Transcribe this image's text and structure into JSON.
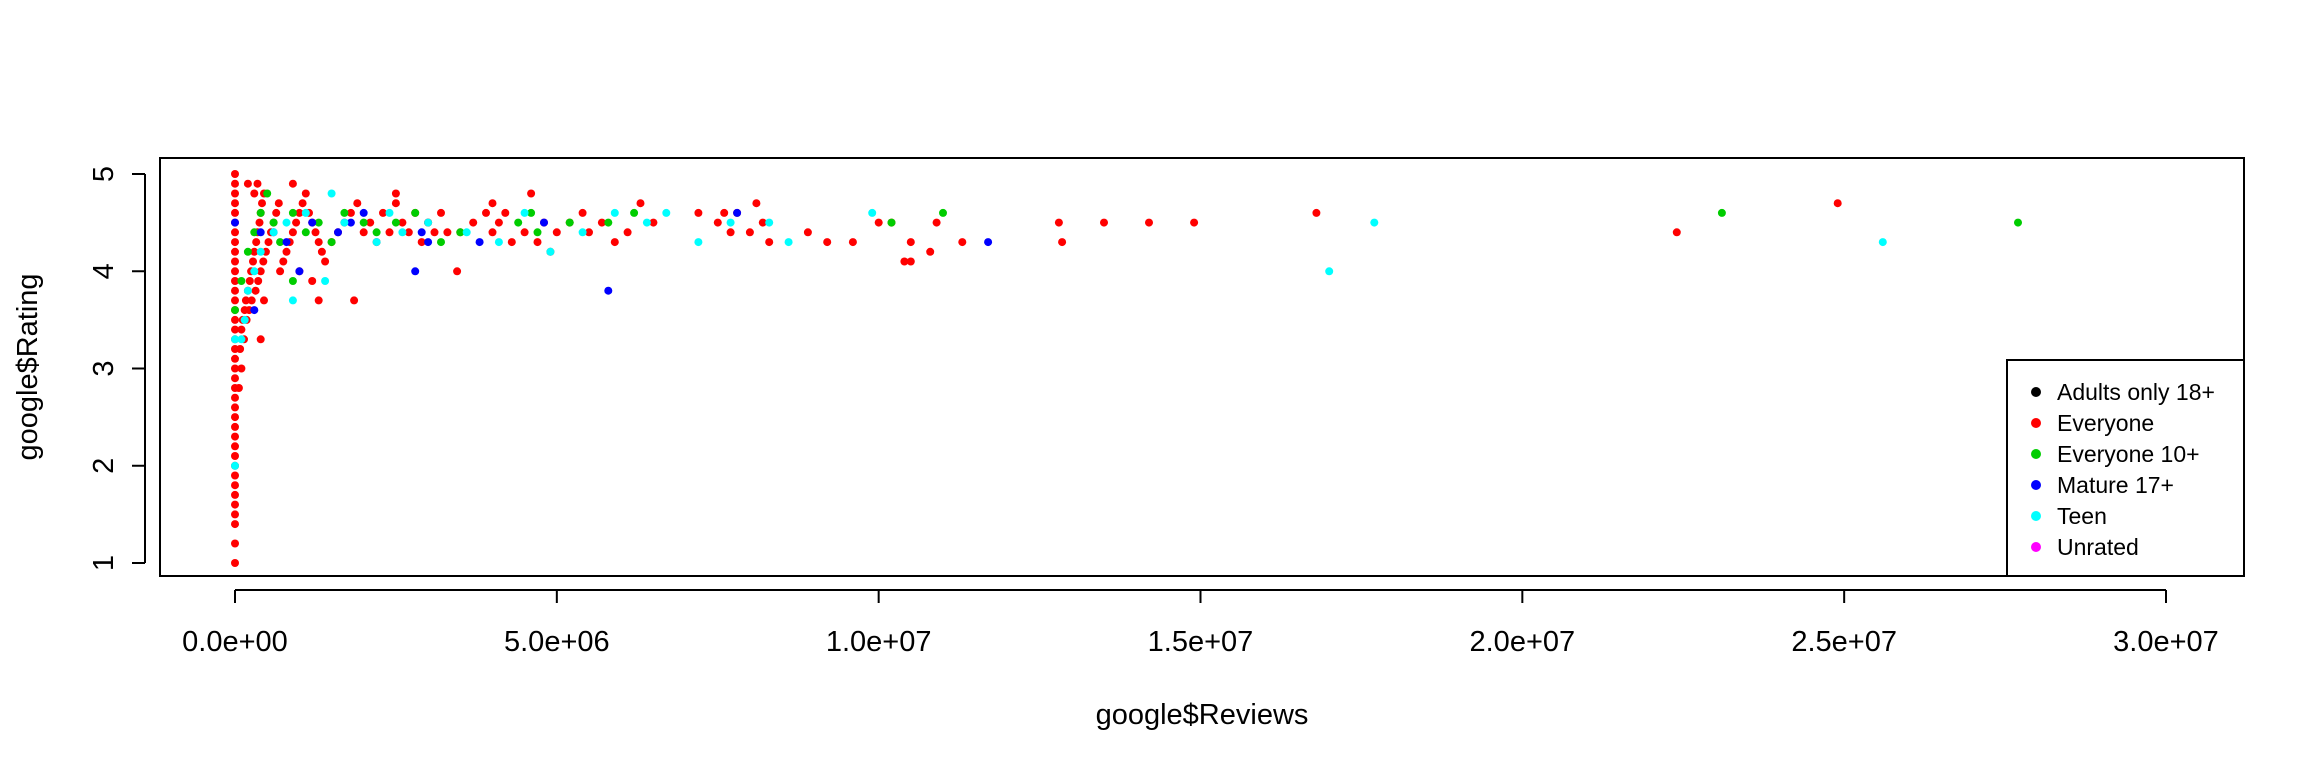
{
  "chart_data": {
    "type": "scatter",
    "xlabel": "google$Reviews",
    "ylabel": "google$Rating",
    "xlim": [
      0,
      30000000
    ],
    "ylim": [
      1,
      5
    ],
    "x_ticks": [
      0,
      5000000,
      10000000,
      15000000,
      20000000,
      25000000,
      30000000
    ],
    "x_tick_labels": [
      "0.0e+00",
      "5.0e+06",
      "1.0e+07",
      "1.5e+07",
      "2.0e+07",
      "2.5e+07",
      "3.0e+07"
    ],
    "y_ticks": [
      1,
      2,
      3,
      4,
      5
    ],
    "y_tick_labels": [
      "1",
      "2",
      "3",
      "4",
      "5"
    ],
    "grid": false,
    "legend_position": "bottom-right",
    "series": [
      {
        "name": "Adults only 18+",
        "color": "#000000",
        "points": []
      },
      {
        "name": "Everyone",
        "color": "#ff0000",
        "points": [
          [
            0,
            1.0
          ],
          [
            0,
            1.2
          ],
          [
            0,
            1.4
          ],
          [
            0,
            1.5
          ],
          [
            0,
            1.6
          ],
          [
            0,
            1.7
          ],
          [
            0,
            1.8
          ],
          [
            0,
            1.9
          ],
          [
            0,
            2.0
          ],
          [
            0,
            2.1
          ],
          [
            0,
            2.2
          ],
          [
            0,
            2.3
          ],
          [
            0,
            2.4
          ],
          [
            0,
            2.5
          ],
          [
            0,
            2.6
          ],
          [
            0,
            2.7
          ],
          [
            0,
            2.8
          ],
          [
            0,
            2.9
          ],
          [
            0,
            3.0
          ],
          [
            0,
            3.1
          ],
          [
            0,
            3.2
          ],
          [
            0,
            3.3
          ],
          [
            0,
            3.4
          ],
          [
            0,
            3.5
          ],
          [
            0,
            3.6
          ],
          [
            0,
            3.7
          ],
          [
            0,
            3.8
          ],
          [
            0,
            3.9
          ],
          [
            0,
            4.0
          ],
          [
            0,
            4.1
          ],
          [
            0,
            4.2
          ],
          [
            0,
            4.3
          ],
          [
            0,
            4.4
          ],
          [
            0,
            4.5
          ],
          [
            0,
            4.6
          ],
          [
            0,
            4.7
          ],
          [
            0,
            4.8
          ],
          [
            0,
            4.9
          ],
          [
            0,
            5.0
          ],
          [
            60000,
            2.8
          ],
          [
            80000,
            3.2
          ],
          [
            100000,
            3.4
          ],
          [
            120000,
            3.5
          ],
          [
            150000,
            3.6
          ],
          [
            170000,
            3.7
          ],
          [
            200000,
            3.8
          ],
          [
            230000,
            3.9
          ],
          [
            250000,
            4.0
          ],
          [
            280000,
            4.1
          ],
          [
            300000,
            4.2
          ],
          [
            330000,
            4.3
          ],
          [
            350000,
            4.4
          ],
          [
            380000,
            4.5
          ],
          [
            400000,
            4.6
          ],
          [
            420000,
            4.7
          ],
          [
            450000,
            4.8
          ],
          [
            200000,
            4.9
          ],
          [
            100000,
            3.0
          ],
          [
            140000,
            3.3
          ],
          [
            180000,
            3.5
          ],
          [
            220000,
            3.6
          ],
          [
            260000,
            3.7
          ],
          [
            320000,
            3.8
          ],
          [
            360000,
            3.9
          ],
          [
            400000,
            4.0
          ],
          [
            440000,
            4.1
          ],
          [
            480000,
            4.2
          ],
          [
            520000,
            4.3
          ],
          [
            560000,
            4.4
          ],
          [
            600000,
            4.5
          ],
          [
            640000,
            4.6
          ],
          [
            680000,
            4.7
          ],
          [
            300000,
            4.8
          ],
          [
            350000,
            4.9
          ],
          [
            400000,
            3.3
          ],
          [
            450000,
            3.7
          ],
          [
            700000,
            4.0
          ],
          [
            750000,
            4.1
          ],
          [
            800000,
            4.2
          ],
          [
            850000,
            4.3
          ],
          [
            900000,
            4.4
          ],
          [
            950000,
            4.5
          ],
          [
            1000000,
            4.6
          ],
          [
            1050000,
            4.7
          ],
          [
            1100000,
            4.8
          ],
          [
            1150000,
            4.6
          ],
          [
            1200000,
            4.5
          ],
          [
            1250000,
            4.4
          ],
          [
            1300000,
            4.3
          ],
          [
            1350000,
            4.2
          ],
          [
            1400000,
            4.1
          ],
          [
            900000,
            4.9
          ],
          [
            1000000,
            4.0
          ],
          [
            1200000,
            3.9
          ],
          [
            1300000,
            3.7
          ],
          [
            1850000,
            3.7
          ],
          [
            1500000,
            4.3
          ],
          [
            1600000,
            4.4
          ],
          [
            1700000,
            4.5
          ],
          [
            1800000,
            4.6
          ],
          [
            1900000,
            4.7
          ],
          [
            2000000,
            4.4
          ],
          [
            2100000,
            4.5
          ],
          [
            2200000,
            4.3
          ],
          [
            2300000,
            4.6
          ],
          [
            2400000,
            4.4
          ],
          [
            2500000,
            4.7
          ],
          [
            2600000,
            4.5
          ],
          [
            2700000,
            4.4
          ],
          [
            2800000,
            4.6
          ],
          [
            2900000,
            4.3
          ],
          [
            3000000,
            4.5
          ],
          [
            3100000,
            4.4
          ],
          [
            3200000,
            4.6
          ],
          [
            3300000,
            4.4
          ],
          [
            3450000,
            4.0
          ],
          [
            2500000,
            4.8
          ],
          [
            3000000,
            4.5
          ],
          [
            3500000,
            4.4
          ],
          [
            3700000,
            4.5
          ],
          [
            3900000,
            4.6
          ],
          [
            4000000,
            4.7
          ],
          [
            4100000,
            4.5
          ],
          [
            4200000,
            4.6
          ],
          [
            4300000,
            4.3
          ],
          [
            4500000,
            4.4
          ],
          [
            4600000,
            4.8
          ],
          [
            4700000,
            4.3
          ],
          [
            4800000,
            4.5
          ],
          [
            4900000,
            4.2
          ],
          [
            5000000,
            4.4
          ],
          [
            5200000,
            4.5
          ],
          [
            5400000,
            4.6
          ],
          [
            5500000,
            4.4
          ],
          [
            5700000,
            4.5
          ],
          [
            5900000,
            4.3
          ],
          [
            6100000,
            4.4
          ],
          [
            6300000,
            4.7
          ],
          [
            6500000,
            4.5
          ],
          [
            4000000,
            4.4
          ],
          [
            7200000,
            4.6
          ],
          [
            7500000,
            4.5
          ],
          [
            7600000,
            4.6
          ],
          [
            7700000,
            4.4
          ],
          [
            7800000,
            4.6
          ],
          [
            8000000,
            4.4
          ],
          [
            8100000,
            4.7
          ],
          [
            8200000,
            4.5
          ],
          [
            8300000,
            4.3
          ],
          [
            8900000,
            4.4
          ],
          [
            9200000,
            4.3
          ],
          [
            9600000,
            4.3
          ],
          [
            10000000,
            4.5
          ],
          [
            10200000,
            4.5
          ],
          [
            10400000,
            4.1
          ],
          [
            10500000,
            4.1
          ],
          [
            10500000,
            4.3
          ],
          [
            10800000,
            4.2
          ],
          [
            10900000,
            4.5
          ],
          [
            11300000,
            4.3
          ],
          [
            12800000,
            4.5
          ],
          [
            12850000,
            4.3
          ],
          [
            13500000,
            4.5
          ],
          [
            14200000,
            4.5
          ],
          [
            14900000,
            4.5
          ],
          [
            16800000,
            4.6
          ],
          [
            22400000,
            4.4
          ],
          [
            24900000,
            4.7
          ]
        ]
      },
      {
        "name": "Everyone 10+",
        "color": "#00cd00",
        "points": [
          [
            0,
            3.6
          ],
          [
            100000,
            3.9
          ],
          [
            200000,
            4.2
          ],
          [
            300000,
            4.4
          ],
          [
            400000,
            4.6
          ],
          [
            500000,
            4.8
          ],
          [
            600000,
            4.5
          ],
          [
            700000,
            4.3
          ],
          [
            900000,
            3.9
          ],
          [
            900000,
            4.6
          ],
          [
            1100000,
            4.4
          ],
          [
            1300000,
            4.5
          ],
          [
            1500000,
            4.3
          ],
          [
            1700000,
            4.6
          ],
          [
            2000000,
            4.5
          ],
          [
            2200000,
            4.4
          ],
          [
            2500000,
            4.5
          ],
          [
            2800000,
            4.6
          ],
          [
            3200000,
            4.3
          ],
          [
            3500000,
            4.4
          ],
          [
            4400000,
            4.5
          ],
          [
            4600000,
            4.6
          ],
          [
            4700000,
            4.4
          ],
          [
            5200000,
            4.5
          ],
          [
            5800000,
            4.5
          ],
          [
            6200000,
            4.6
          ],
          [
            10200000,
            4.5
          ],
          [
            11000000,
            4.6
          ],
          [
            23100000,
            4.6
          ],
          [
            27700000,
            4.5
          ]
        ]
      },
      {
        "name": "Mature 17+",
        "color": "#0000ff",
        "points": [
          [
            0,
            4.5
          ],
          [
            300000,
            3.6
          ],
          [
            400000,
            4.4
          ],
          [
            600000,
            4.4
          ],
          [
            800000,
            4.3
          ],
          [
            1000000,
            4.0
          ],
          [
            1200000,
            4.5
          ],
          [
            1600000,
            4.4
          ],
          [
            1800000,
            4.5
          ],
          [
            2000000,
            4.6
          ],
          [
            2800000,
            4.0
          ],
          [
            2900000,
            4.4
          ],
          [
            3000000,
            4.3
          ],
          [
            3800000,
            4.3
          ],
          [
            4800000,
            4.5
          ],
          [
            5800000,
            3.8
          ],
          [
            7800000,
            4.6
          ],
          [
            11700000,
            4.3
          ]
        ]
      },
      {
        "name": "Teen",
        "color": "#00ffff",
        "points": [
          [
            0,
            2.0
          ],
          [
            0,
            3.3
          ],
          [
            100000,
            3.3
          ],
          [
            150000,
            3.5
          ],
          [
            200000,
            3.8
          ],
          [
            300000,
            4.0
          ],
          [
            400000,
            4.2
          ],
          [
            600000,
            4.4
          ],
          [
            800000,
            4.5
          ],
          [
            900000,
            3.7
          ],
          [
            1100000,
            4.6
          ],
          [
            1400000,
            3.9
          ],
          [
            1500000,
            4.8
          ],
          [
            1700000,
            4.5
          ],
          [
            2200000,
            4.3
          ],
          [
            2400000,
            4.6
          ],
          [
            2600000,
            4.4
          ],
          [
            3000000,
            4.5
          ],
          [
            3600000,
            4.4
          ],
          [
            4100000,
            4.3
          ],
          [
            4500000,
            4.6
          ],
          [
            4900000,
            4.2
          ],
          [
            5400000,
            4.4
          ],
          [
            5900000,
            4.6
          ],
          [
            6400000,
            4.5
          ],
          [
            6700000,
            4.6
          ],
          [
            7200000,
            4.3
          ],
          [
            7700000,
            4.5
          ],
          [
            8300000,
            4.5
          ],
          [
            8600000,
            4.3
          ],
          [
            9900000,
            4.6
          ],
          [
            17000000,
            4.0
          ],
          [
            17700000,
            4.5
          ],
          [
            25600000,
            4.3
          ]
        ]
      },
      {
        "name": "Unrated",
        "color": "#ff00ff",
        "points": []
      }
    ]
  }
}
